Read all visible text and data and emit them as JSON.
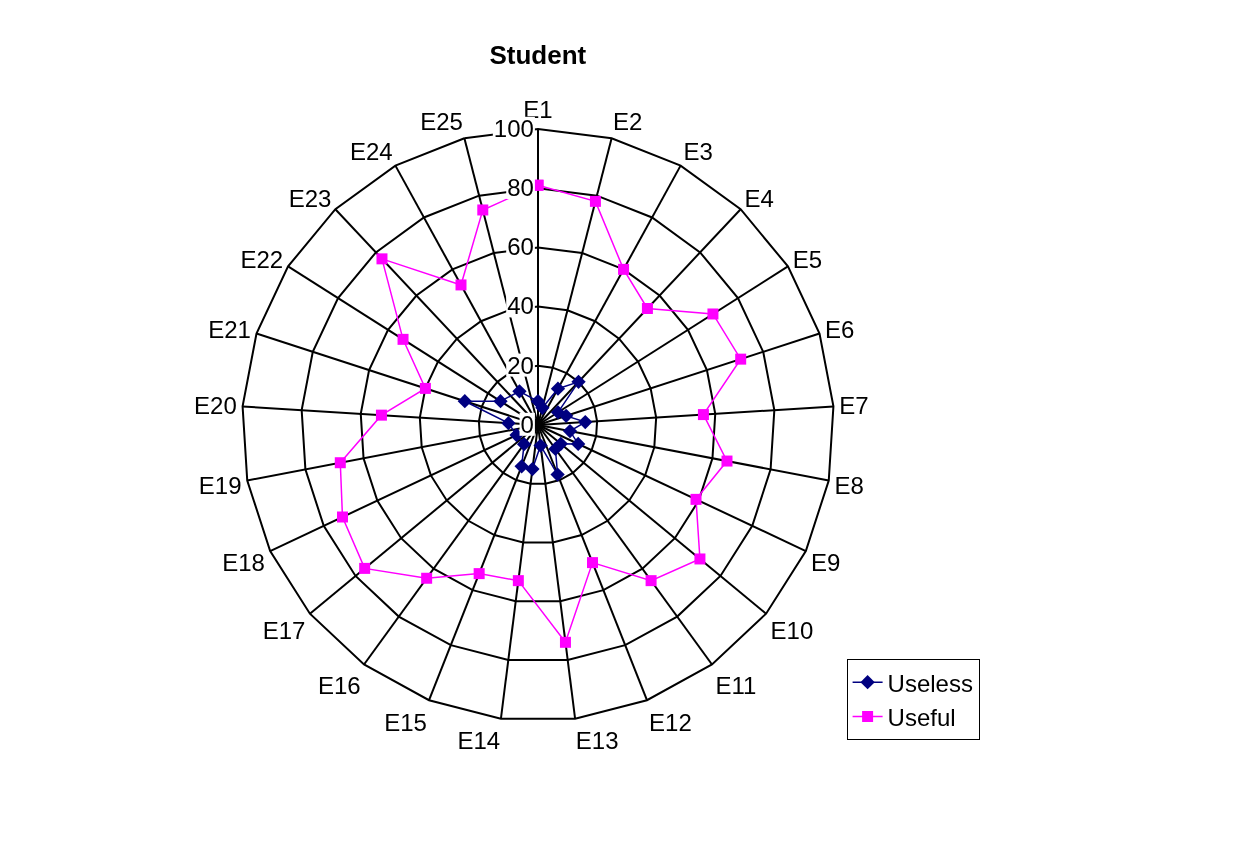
{
  "chart_data": {
    "type": "radar",
    "title": "Student",
    "categories": [
      "E1",
      "E2",
      "E3",
      "E4",
      "E5",
      "E6",
      "E7",
      "E8",
      "E9",
      "E10",
      "E11",
      "E12",
      "E13",
      "E14",
      "E15",
      "E16",
      "E17",
      "E18",
      "E19",
      "E20",
      "E21",
      "E22",
      "E23",
      "E24",
      "E25"
    ],
    "series": [
      {
        "name": "Useless",
        "color": "#000080",
        "marker": "diamond",
        "values": [
          8,
          6,
          14,
          20,
          8,
          10,
          16,
          11,
          15,
          10,
          10,
          18,
          7,
          15,
          15,
          8,
          null,
          8,
          null,
          10,
          26,
          15,
          null,
          13,
          null
        ]
      },
      {
        "name": "Useful",
        "color": "#ff00ff",
        "marker": "square",
        "values": [
          81,
          78,
          60,
          54,
          70,
          72,
          56,
          65,
          59,
          71,
          65,
          50,
          74,
          53,
          54,
          64,
          76,
          73,
          68,
          53,
          40,
          54,
          77,
          54,
          75
        ]
      }
    ],
    "ylim": [
      0,
      100
    ],
    "yticks": [
      0,
      20,
      40,
      60,
      80,
      100
    ],
    "grid": true,
    "legend": "bottom right",
    "line_style": "solid"
  }
}
